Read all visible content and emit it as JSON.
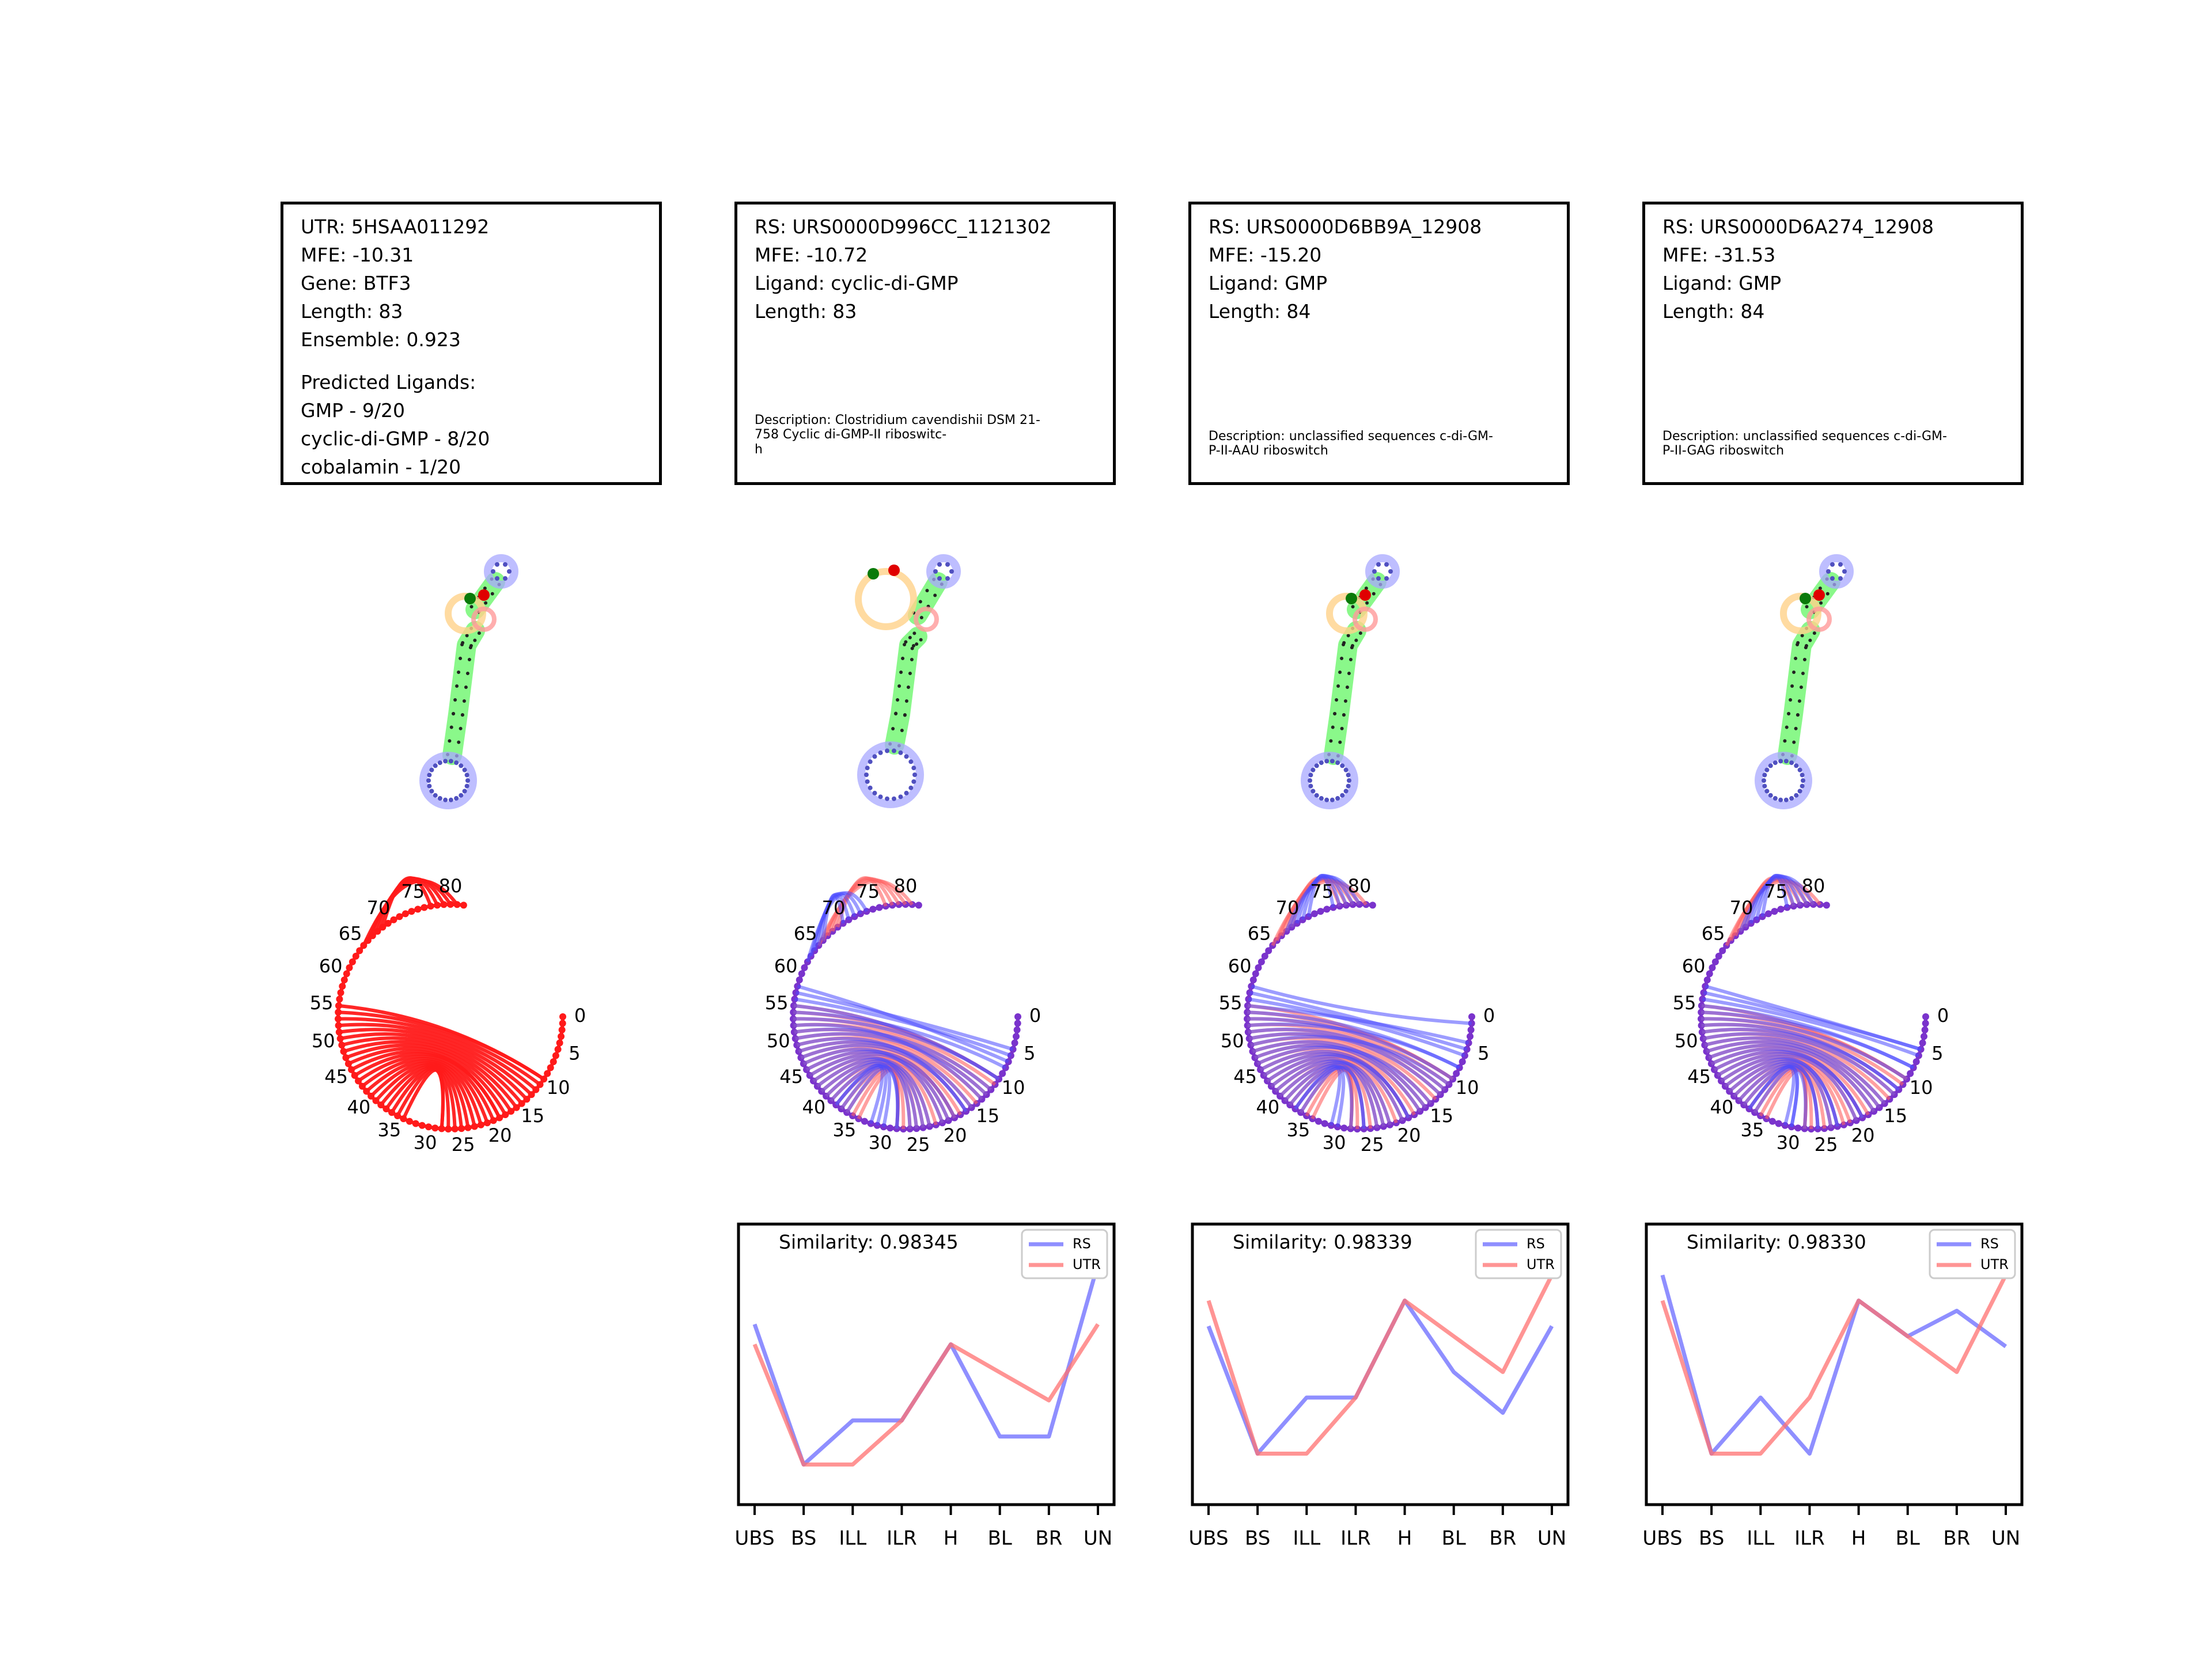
{
  "utr_box": {
    "lines": [
      "UTR: 5HSAA011292",
      "MFE: -10.31",
      "Gene: BTF3",
      "Length: 83",
      "Ensemble: 0.923"
    ],
    "predicted_title": "Predicted Ligands:",
    "predicted": [
      "GMP - 9/20",
      "cyclic-di-GMP - 8/20",
      "cobalamin - 1/20"
    ]
  },
  "rs_boxes": [
    {
      "lines": [
        "RS: URS0000D996CC_1121302",
        "MFE: -10.72",
        "Ligand: cyclic-di-GMP",
        "Length: 83"
      ],
      "description": "Description: Clostridium cavendishii DSM 21-\n758 Cyclic di-GMP-II riboswitc-\nh"
    },
    {
      "lines": [
        "RS: URS0000D6BB9A_12908",
        "MFE: -15.20",
        "Ligand: GMP",
        "Length: 84"
      ],
      "description": "Description: unclassified sequences c-di-GM-\nP-II-AAU riboswitch"
    },
    {
      "lines": [
        "RS: URS0000D6A274_12908",
        "MFE: -31.53",
        "Ligand: GMP",
        "Length: 84"
      ],
      "description": "Description: unclassified sequences c-di-GM-\nP-II-GAG riboswitch"
    }
  ],
  "arc_tick_labels": [
    "0",
    "5",
    "10",
    "15",
    "20",
    "25",
    "30",
    "35",
    "40",
    "45",
    "50",
    "55",
    "60",
    "65",
    "70",
    "75",
    "80"
  ],
  "colors": {
    "rs": "#6a6aff",
    "utr": "#ff7070",
    "utr_arc": "#ff1a1a",
    "overlap_arc": "#7a33cc",
    "stem": "#7df77d",
    "hairpin": "#a8a8ff",
    "interior": "#ffd28a",
    "bulge": "#ff9a9a",
    "dot": "#222222"
  },
  "chart_data": [
    {
      "type": "line",
      "title": "Similarity: 0.98345",
      "categories": [
        "UBS",
        "BS",
        "ILL",
        "ILR",
        "H",
        "BL",
        "BR",
        "UN"
      ],
      "series": [
        {
          "name": "RS",
          "values": [
            0.45,
            0.1,
            0.21,
            0.21,
            0.4,
            0.17,
            0.17,
            0.6
          ]
        },
        {
          "name": "UTR",
          "values": [
            0.4,
            0.1,
            0.1,
            0.21,
            0.4,
            0.33,
            0.26,
            0.45
          ]
        }
      ],
      "ylim": [
        0.0,
        0.7
      ],
      "legend": "upper right",
      "grid": false
    },
    {
      "type": "line",
      "title": "Similarity: 0.98339",
      "categories": [
        "UBS",
        "BS",
        "ILL",
        "ILR",
        "H",
        "BL",
        "BR",
        "UN"
      ],
      "series": [
        {
          "name": "RS",
          "values": [
            0.35,
            0.1,
            0.21,
            0.21,
            0.4,
            0.26,
            0.18,
            0.35
          ]
        },
        {
          "name": "UTR",
          "values": [
            0.4,
            0.1,
            0.1,
            0.21,
            0.4,
            0.33,
            0.26,
            0.45
          ]
        }
      ],
      "ylim": [
        0.0,
        0.55
      ],
      "legend": "upper right",
      "grid": false
    },
    {
      "type": "line",
      "title": "Similarity: 0.98330",
      "categories": [
        "UBS",
        "BS",
        "ILL",
        "ILR",
        "H",
        "BL",
        "BR",
        "UN"
      ],
      "series": [
        {
          "name": "RS",
          "values": [
            0.45,
            0.1,
            0.21,
            0.1,
            0.4,
            0.33,
            0.38,
            0.31
          ]
        },
        {
          "name": "UTR",
          "values": [
            0.4,
            0.1,
            0.1,
            0.21,
            0.4,
            0.33,
            0.26,
            0.45
          ]
        }
      ],
      "ylim": [
        0.0,
        0.55
      ],
      "legend": "upper right",
      "grid": false
    }
  ]
}
